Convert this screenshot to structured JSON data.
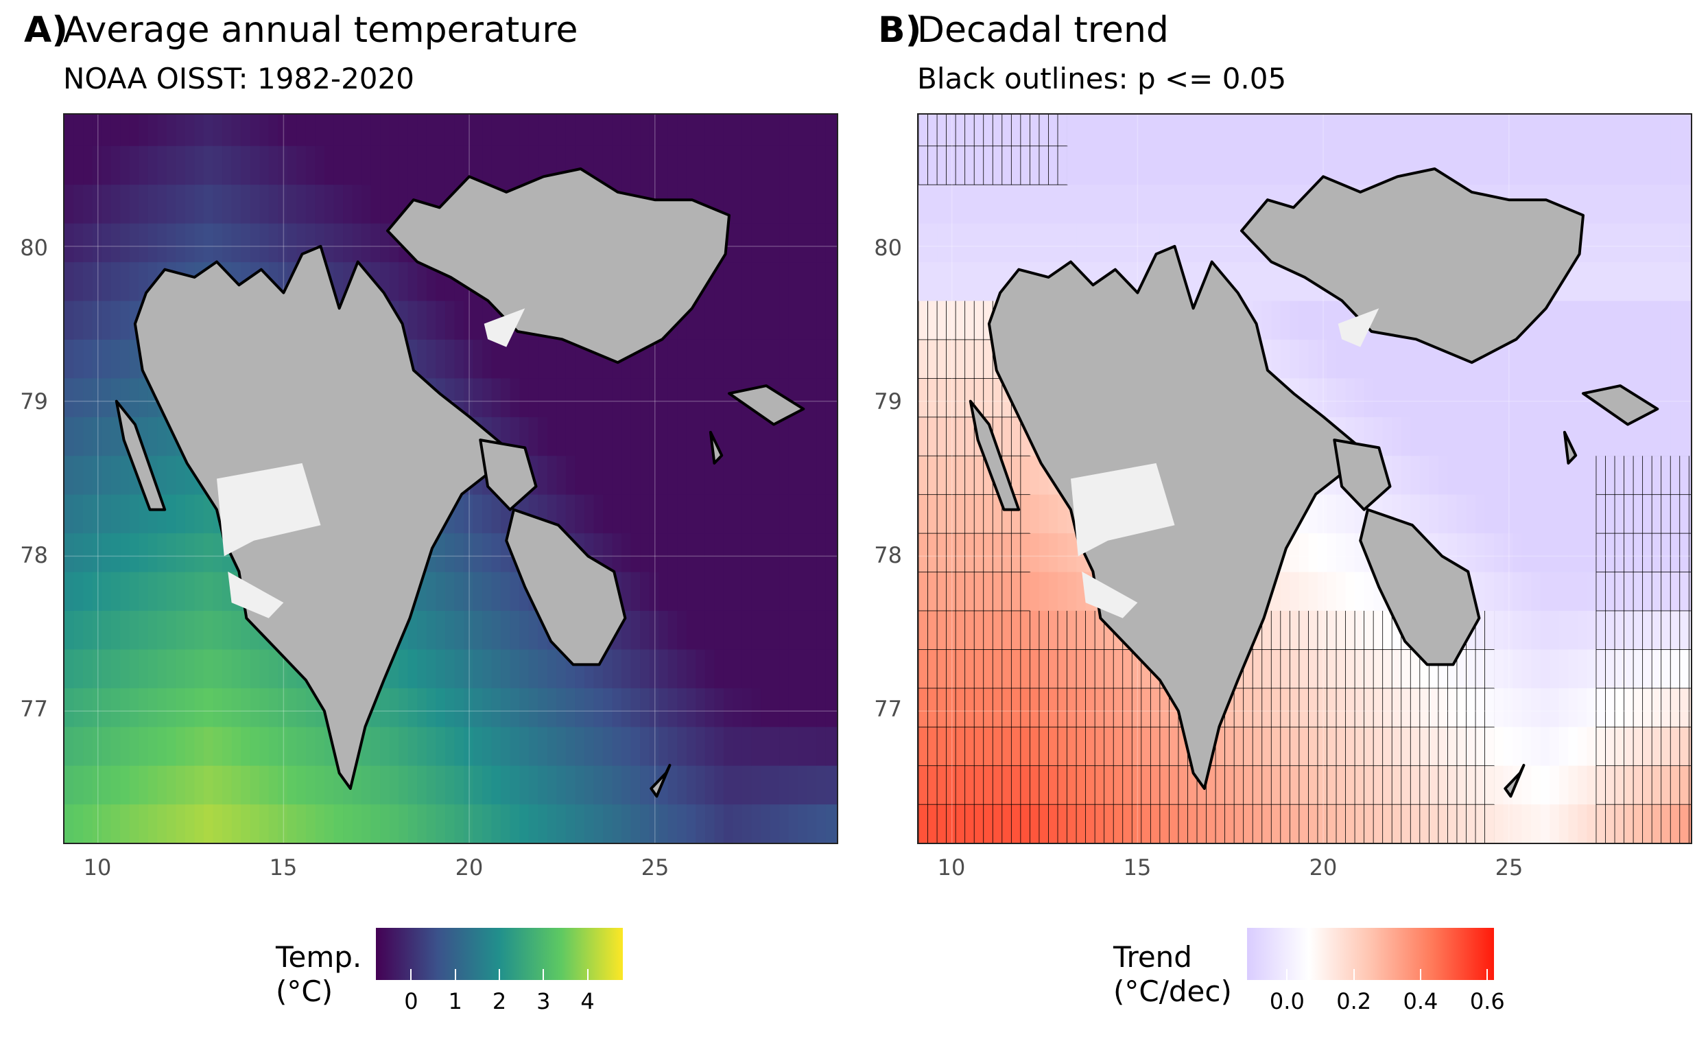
{
  "panel_a": {
    "tag": "A)",
    "title": "Average annual temperature",
    "subtitle": "NOAA OISST: 1982-2020",
    "legend_title_line1": "Temp.",
    "legend_title_line2": "(°C)",
    "legend_colors": [
      "#440154",
      "#3b528b",
      "#21908c",
      "#5ec962",
      "#fde725"
    ],
    "legend_ticks": [
      "0",
      "1",
      "2",
      "3",
      "4"
    ],
    "legend_range": [
      -0.8,
      4.8
    ]
  },
  "panel_b": {
    "tag": "B)",
    "title": "Decadal trend",
    "subtitle": "Black outlines: p <= 0.05",
    "legend_title_line1": "Trend",
    "legend_title_line2": "(°C/dec)",
    "legend_colors": [
      "#d9ccff",
      "#ffffff",
      "#ffc4b0",
      "#ff7a5a",
      "#ff1a0a"
    ],
    "legend_ticks": [
      "0.0",
      "0.2",
      "0.4",
      "0.6"
    ],
    "legend_range": [
      -0.12,
      0.62
    ]
  },
  "map": {
    "x_ticks": [
      "10",
      "15",
      "20",
      "25"
    ],
    "y_ticks": [
      "80",
      "79",
      "78",
      "77"
    ],
    "x_range": [
      9.1,
      29.9
    ],
    "y_range": [
      76.15,
      80.85
    ],
    "land_color": "#b3b3b3",
    "ice_color": "#f0f0f0"
  },
  "chart_data": [
    {
      "type": "heatmap",
      "title": "Average annual temperature",
      "subtitle": "NOAA OISST: 1982-2020",
      "xlabel": "",
      "ylabel": "",
      "xlim": [
        9.1,
        29.9
      ],
      "ylim": [
        76.15,
        80.85
      ],
      "legend": "bottom",
      "grid": true,
      "colorbar": {
        "title": "Temp. (°C)",
        "ticks": [
          0,
          1,
          2,
          3,
          4
        ],
        "range": [
          -0.8,
          4.8
        ]
      }
    },
    {
      "type": "heatmap",
      "title": "Decadal trend",
      "subtitle": "Black outlines: p <= 0.05",
      "xlabel": "",
      "ylabel": "",
      "xlim": [
        9.1,
        29.9
      ],
      "ylim": [
        76.15,
        80.85
      ],
      "legend": "bottom",
      "grid": true,
      "colorbar": {
        "title": "Trend (°C/dec)",
        "ticks": [
          0.0,
          0.2,
          0.4,
          0.6
        ],
        "range": [
          -0.12,
          0.62
        ]
      }
    }
  ]
}
